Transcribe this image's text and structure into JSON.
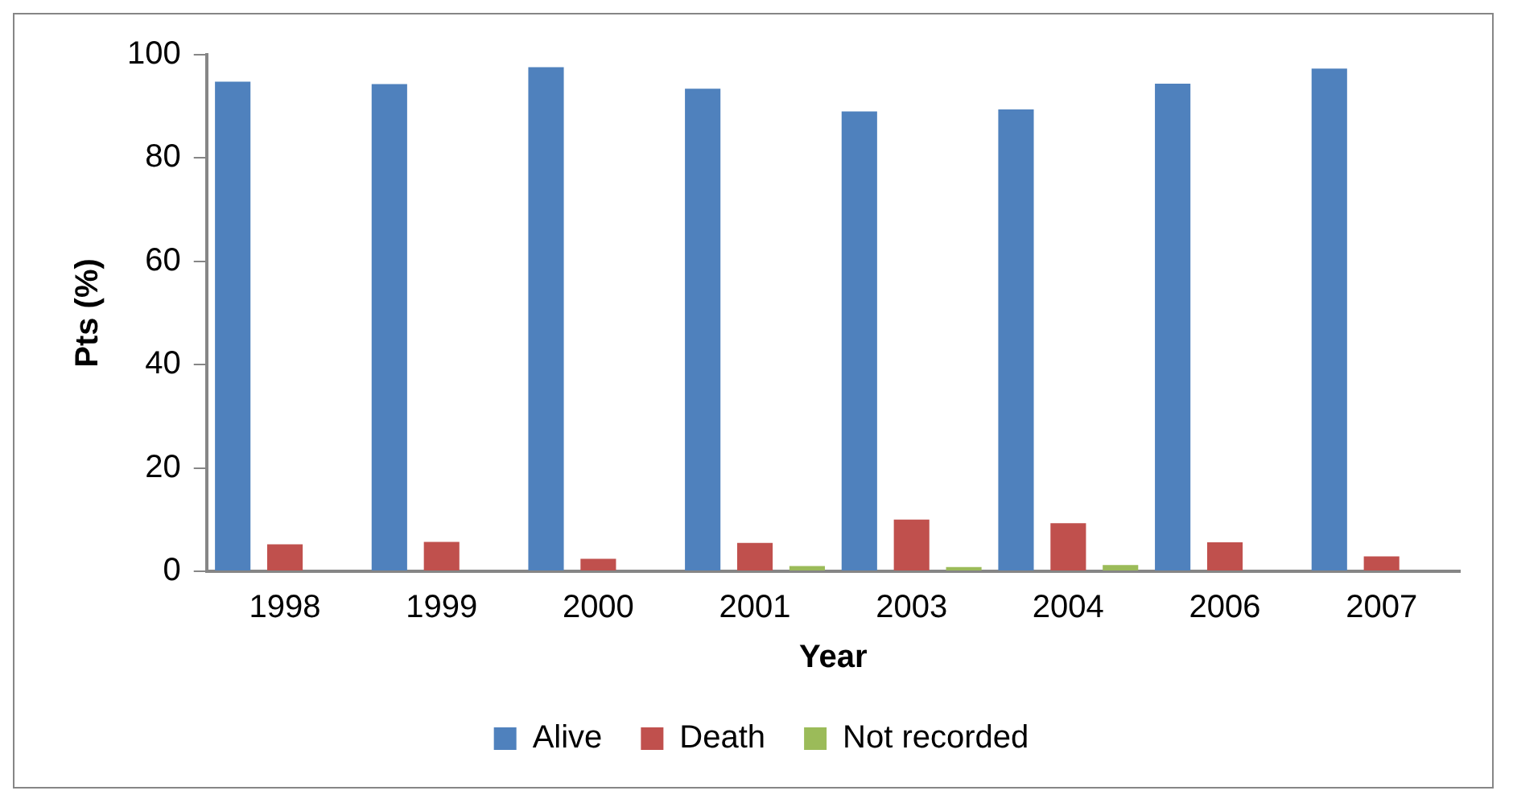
{
  "chart_data": {
    "type": "bar",
    "xlabel": "Year",
    "ylabel": "Pts (%)",
    "categories": [
      "1998",
      "1999",
      "2000",
      "2001",
      "2003",
      "2004",
      "2006",
      "2007"
    ],
    "series": [
      {
        "name": "Alive",
        "color": "#4f81bd",
        "values": [
          94.8,
          94.3,
          97.6,
          93.4,
          89,
          89.4,
          94.4,
          97.3
        ]
      },
      {
        "name": "Death",
        "color": "#c0504d",
        "values": [
          5.2,
          5.7,
          2.4,
          5.5,
          10,
          9.3,
          5.6,
          2.9
        ]
      },
      {
        "name": "Not recorded",
        "color": "#9bbb59",
        "values": [
          0,
          0,
          0,
          1,
          0.8,
          1.2,
          0,
          0
        ]
      }
    ],
    "ylim": [
      0,
      100
    ],
    "yticks": [
      0,
      20,
      40,
      60,
      80,
      100
    ],
    "grid": false,
    "legend": "bottom"
  }
}
